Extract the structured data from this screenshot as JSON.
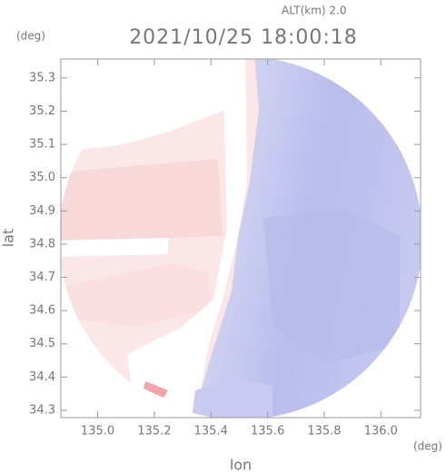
{
  "chart_data": {
    "type": "radar-map",
    "title": "2021/10/25 18:00:18",
    "altitude_label": "ALT(km) 2.0",
    "y_unit": "(deg)",
    "x_unit": "(deg)",
    "x_label": "lon",
    "y_label": "lat",
    "xlim": [
      134.87,
      136.14
    ],
    "ylim": [
      34.278,
      35.357
    ],
    "xticks": [
      {
        "value": 135,
        "label": "135.0"
      },
      135.2,
      135.4,
      135.6,
      135.8,
      {
        "value": 136,
        "label": "136.0"
      }
    ],
    "yticks": [
      35.3,
      35.2,
      35.1,
      {
        "value": 35,
        "label": "35.0"
      },
      34.9,
      34.8,
      34.7,
      34.6,
      34.5,
      34.4,
      34.3
    ]
  }
}
